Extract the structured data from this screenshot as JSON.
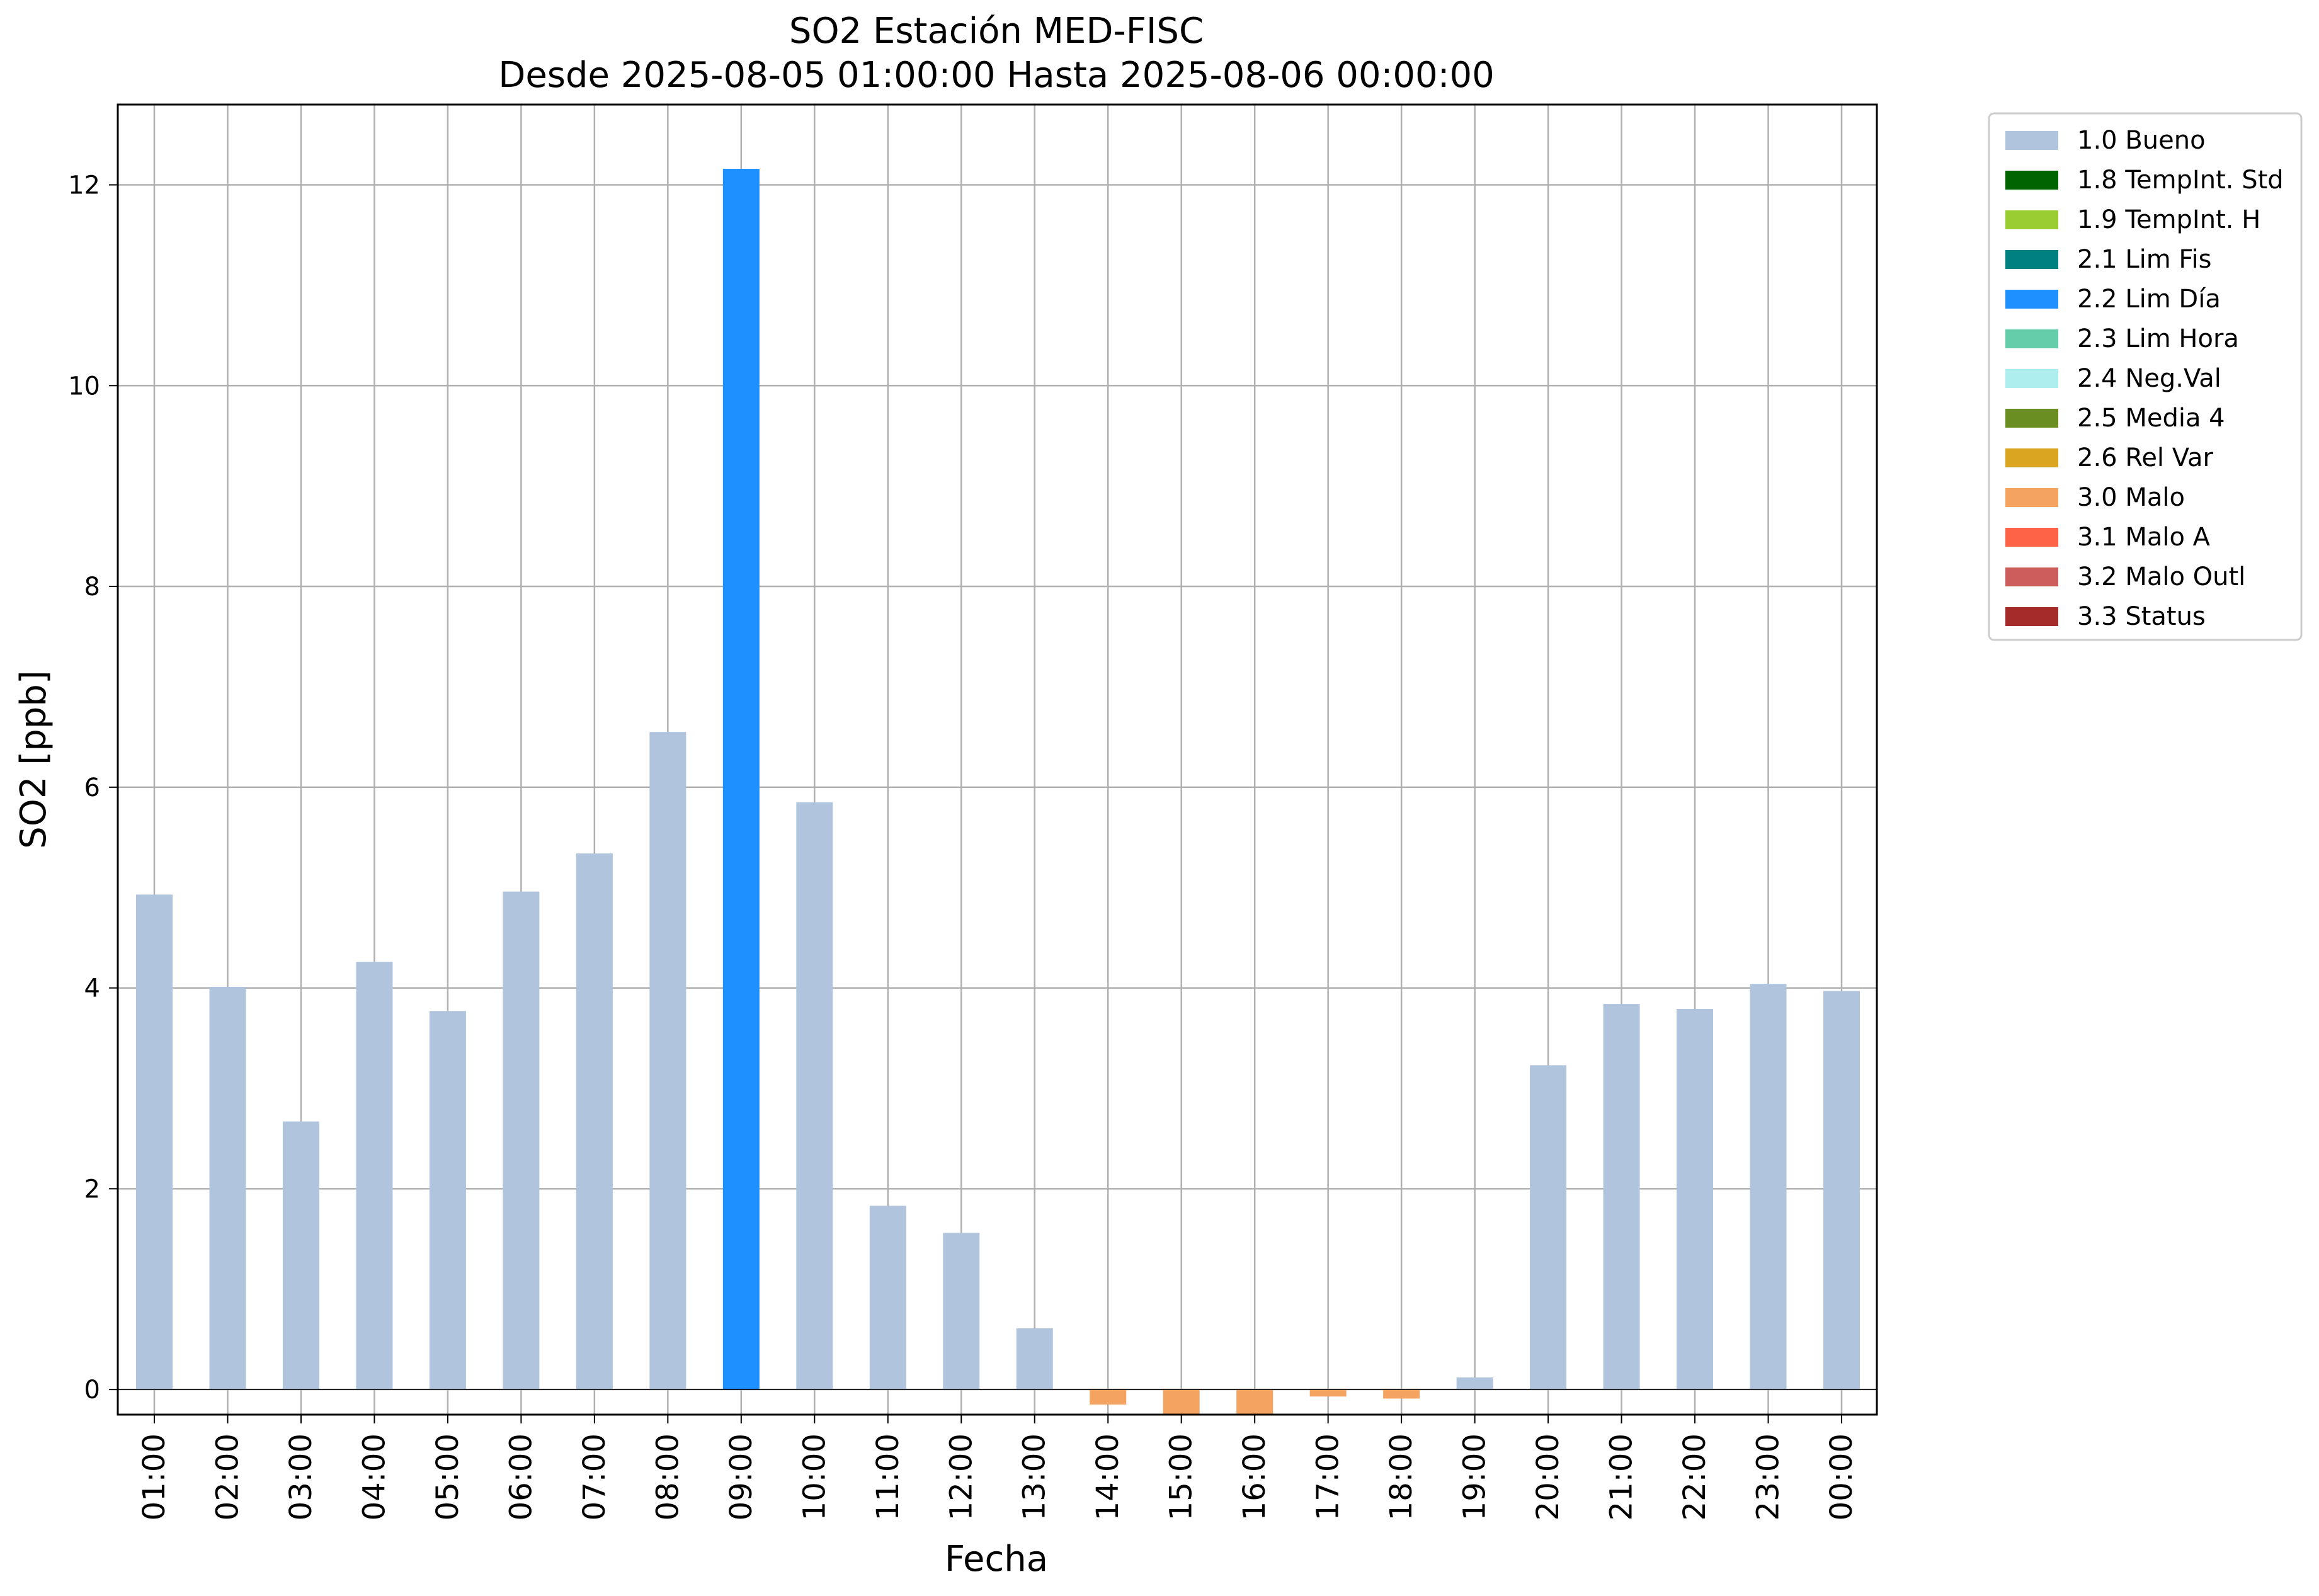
{
  "chart_data": {
    "type": "bar",
    "title": "SO2 Estación MED-FISC",
    "subtitle": "Desde 2025-08-05 01:00:00 Hasta 2025-08-06 00:00:00",
    "xlabel": "Fecha",
    "ylabel": "SO2 [ppb]",
    "ylim": [
      -0.25,
      12.8
    ],
    "yticks": [
      0,
      2,
      4,
      6,
      8,
      10,
      12
    ],
    "grid": true,
    "legend_position": "outside top-right",
    "categories": [
      "01:00",
      "02:00",
      "03:00",
      "04:00",
      "05:00",
      "06:00",
      "07:00",
      "08:00",
      "09:00",
      "10:00",
      "11:00",
      "12:00",
      "13:00",
      "14:00",
      "15:00",
      "16:00",
      "17:00",
      "18:00",
      "19:00",
      "20:00",
      "21:00",
      "22:00",
      "23:00",
      "00:00"
    ],
    "values": [
      4.93,
      4.01,
      2.67,
      4.26,
      3.77,
      4.96,
      5.34,
      6.55,
      12.16,
      5.85,
      1.83,
      1.56,
      0.61,
      -0.15,
      -0.25,
      -0.25,
      -0.07,
      -0.09,
      0.12,
      3.23,
      3.84,
      3.79,
      4.04,
      3.97
    ],
    "flags": [
      "1.0 Bueno",
      "1.0 Bueno",
      "1.0 Bueno",
      "1.0 Bueno",
      "1.0 Bueno",
      "1.0 Bueno",
      "1.0 Bueno",
      "1.0 Bueno",
      "2.2 Lim Día",
      "1.0 Bueno",
      "1.0 Bueno",
      "1.0 Bueno",
      "1.0 Bueno",
      "3.0 Malo",
      "3.0 Malo",
      "3.0 Malo",
      "3.0 Malo",
      "3.0 Malo",
      "1.0 Bueno",
      "1.0 Bueno",
      "1.0 Bueno",
      "1.0 Bueno",
      "1.0 Bueno",
      "1.0 Bueno"
    ],
    "legend": [
      {
        "label": "1.0 Bueno",
        "color": "#b0c4de"
      },
      {
        "label": "1.8 TempInt. Std",
        "color": "#006400"
      },
      {
        "label": "1.9 TempInt. H",
        "color": "#9acd32"
      },
      {
        "label": "2.1 Lim Fis",
        "color": "#008080"
      },
      {
        "label": "2.2 Lim Día",
        "color": "#1e90ff"
      },
      {
        "label": "2.3 Lim Hora",
        "color": "#66cdaa"
      },
      {
        "label": "2.4 Neg.Val",
        "color": "#afeeee"
      },
      {
        "label": "2.5 Media 4",
        "color": "#6b8e23"
      },
      {
        "label": "2.6 Rel Var",
        "color": "#daa520"
      },
      {
        "label": "3.0 Malo",
        "color": "#f4a460"
      },
      {
        "label": "3.1 Malo A",
        "color": "#ff6347"
      },
      {
        "label": "3.2 Malo Outl",
        "color": "#cd5c5c"
      },
      {
        "label": "3.3 Status",
        "color": "#a52a2a"
      }
    ]
  }
}
